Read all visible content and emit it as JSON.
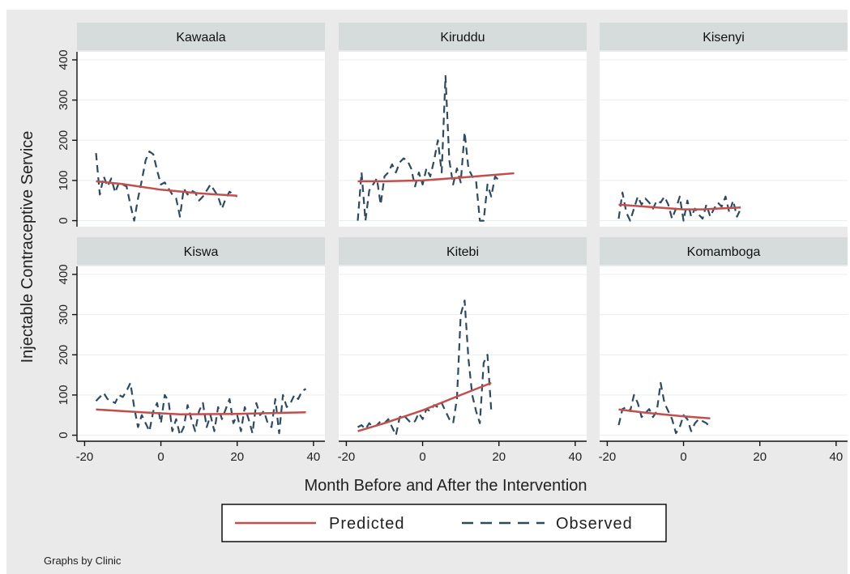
{
  "chart_data": {
    "type": "line",
    "xlabel": "Month Before and After the Intervention",
    "ylabel": "Injectable Contraceptive Service",
    "xlim": [
      -22,
      43
    ],
    "ylim": [
      -15,
      420
    ],
    "xticks": [
      -20,
      0,
      20,
      40
    ],
    "yticks": [
      0,
      100,
      200,
      300,
      400
    ],
    "grid": true,
    "legend_position": "bottom",
    "note": "Graphs by Clinic",
    "legend": [
      {
        "name": "Predicted",
        "color": "#c0504d",
        "style": "solid"
      },
      {
        "name": "Observed",
        "color": "#2e4a5e",
        "style": "dashed"
      }
    ],
    "panels": [
      {
        "title": "Kawaala",
        "predicted": {
          "x": [
            -17,
            -10,
            0,
            10,
            20
          ],
          "y": [
            98,
            91,
            77,
            68,
            62
          ]
        },
        "observed": {
          "x": [
            -17,
            -16,
            -15,
            -14,
            -13,
            -12,
            -11,
            -10,
            -9,
            -8,
            -7,
            -6,
            -5,
            -4,
            -3,
            -2,
            -1,
            0,
            1,
            2,
            3,
            4,
            5,
            6,
            7,
            8,
            9,
            10,
            11,
            12,
            13,
            14,
            15,
            16,
            17,
            18,
            19,
            20
          ],
          "y": [
            168,
            65,
            110,
            85,
            105,
            70,
            95,
            90,
            85,
            40,
            0,
            55,
            100,
            150,
            172,
            165,
            125,
            90,
            95,
            80,
            65,
            55,
            10,
            80,
            65,
            75,
            70,
            50,
            60,
            75,
            90,
            75,
            60,
            30,
            55,
            72,
            65,
            60
          ]
        }
      },
      {
        "title": "Kiruddu",
        "predicted": {
          "x": [
            -17,
            -10,
            0,
            10,
            24
          ],
          "y": [
            98,
            98,
            100,
            107,
            118
          ]
        },
        "observed": {
          "x": [
            -17,
            -16,
            -15,
            -14,
            -13,
            -12,
            -11,
            -10,
            -9,
            -8,
            -7,
            -6,
            -5,
            -4,
            -3,
            -2,
            -1,
            0,
            1,
            2,
            3,
            4,
            5,
            6,
            7,
            8,
            9,
            10,
            11,
            12,
            13,
            14,
            15,
            16,
            17,
            18,
            19,
            20
          ],
          "y": [
            0,
            120,
            0,
            75,
            90,
            105,
            40,
            110,
            120,
            140,
            120,
            145,
            155,
            150,
            130,
            85,
            120,
            90,
            130,
            110,
            150,
            200,
            120,
            360,
            150,
            90,
            130,
            95,
            220,
            130,
            110,
            100,
            0,
            0,
            90,
            60,
            110,
            100
          ]
        }
      },
      {
        "title": "Kisenyi",
        "predicted": {
          "x": [
            -17,
            -10,
            0,
            5,
            15
          ],
          "y": [
            40,
            35,
            28,
            28,
            33
          ]
        },
        "observed": {
          "x": [
            -17,
            -16,
            -15,
            -14,
            -13,
            -12,
            -11,
            -10,
            -9,
            -8,
            -7,
            -6,
            -5,
            -4,
            -3,
            -2,
            -1,
            0,
            1,
            2,
            3,
            4,
            5,
            6,
            7,
            8,
            9,
            10,
            11,
            12,
            13,
            14,
            15
          ],
          "y": [
            5,
            70,
            20,
            0,
            30,
            60,
            40,
            55,
            45,
            30,
            50,
            45,
            60,
            40,
            5,
            30,
            60,
            0,
            50,
            10,
            30,
            15,
            5,
            40,
            10,
            30,
            45,
            35,
            60,
            20,
            50,
            10,
            30
          ]
        }
      },
      {
        "title": "Kiswa",
        "predicted": {
          "x": [
            -17,
            -5,
            5,
            20,
            38
          ],
          "y": [
            64,
            57,
            52,
            53,
            57
          ]
        },
        "observed": {
          "x": [
            -17,
            -16,
            -15,
            -14,
            -13,
            -12,
            -11,
            -10,
            -9,
            -8,
            -7,
            -6,
            -5,
            -4,
            -3,
            -2,
            -1,
            0,
            1,
            2,
            3,
            4,
            5,
            6,
            7,
            8,
            9,
            10,
            11,
            12,
            13,
            14,
            15,
            16,
            17,
            18,
            19,
            20,
            21,
            22,
            23,
            24,
            25,
            26,
            27,
            28,
            29,
            30,
            31,
            32,
            33,
            34,
            35,
            36,
            37,
            38
          ],
          "y": [
            85,
            95,
            105,
            90,
            85,
            80,
            100,
            95,
            110,
            130,
            70,
            20,
            50,
            30,
            10,
            60,
            80,
            30,
            100,
            85,
            10,
            40,
            0,
            20,
            75,
            40,
            10,
            60,
            80,
            20,
            50,
            10,
            70,
            40,
            65,
            90,
            30,
            50,
            10,
            70,
            40,
            5,
            80,
            50,
            60,
            30,
            20,
            90,
            5,
            100,
            70,
            80,
            100,
            90,
            110,
            115
          ]
        }
      },
      {
        "title": "Kitebi",
        "predicted": {
          "x": [
            -17,
            -10,
            0,
            10,
            18
          ],
          "y": [
            10,
            30,
            62,
            100,
            130
          ]
        },
        "observed": {
          "x": [
            -17,
            -16,
            -15,
            -14,
            -13,
            -12,
            -11,
            -10,
            -9,
            -8,
            -7,
            -6,
            -5,
            -4,
            -3,
            -2,
            -1,
            0,
            1,
            2,
            3,
            4,
            5,
            6,
            7,
            8,
            9,
            10,
            11,
            12,
            13,
            14,
            15,
            16,
            17,
            18
          ],
          "y": [
            20,
            25,
            15,
            30,
            20,
            25,
            35,
            30,
            40,
            20,
            0,
            45,
            50,
            40,
            30,
            35,
            55,
            40,
            65,
            60,
            75,
            70,
            80,
            60,
            40,
            30,
            90,
            300,
            335,
            190,
            100,
            60,
            30,
            180,
            200,
            60
          ]
        }
      },
      {
        "title": "Komamboga",
        "predicted": {
          "x": [
            -17,
            -10,
            0,
            7
          ],
          "y": [
            64,
            56,
            47,
            42
          ]
        },
        "observed": {
          "x": [
            -17,
            -16,
            -15,
            -14,
            -13,
            -12,
            -11,
            -10,
            -9,
            -8,
            -7,
            -6,
            -5,
            -4,
            -3,
            -2,
            -1,
            0,
            1,
            2,
            3,
            4,
            5,
            6,
            7
          ],
          "y": [
            25,
            65,
            70,
            60,
            100,
            80,
            45,
            55,
            65,
            45,
            60,
            130,
            80,
            60,
            40,
            5,
            20,
            50,
            40,
            10,
            30,
            40,
            35,
            30,
            20
          ]
        }
      }
    ]
  }
}
